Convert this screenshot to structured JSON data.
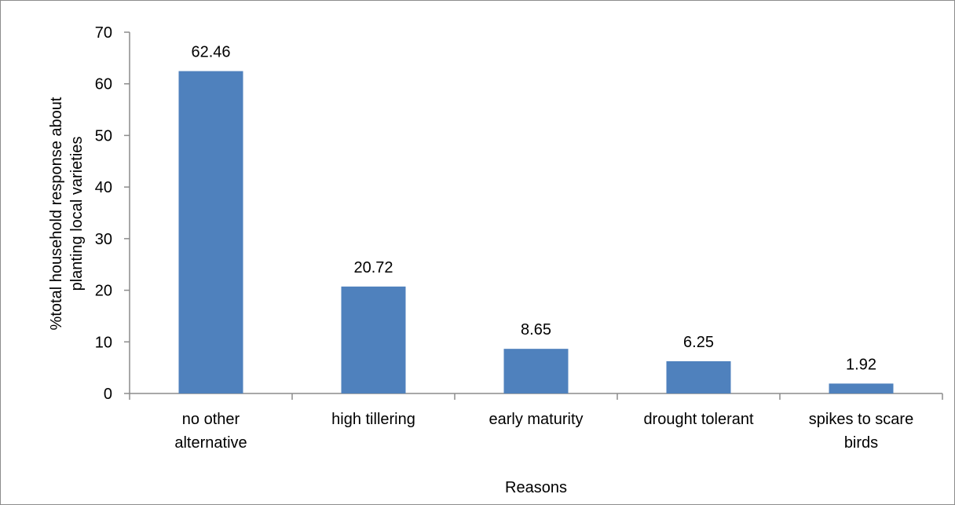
{
  "chart_data": {
    "type": "bar",
    "categories": [
      [
        "no other",
        "alternative"
      ],
      [
        "high tillering"
      ],
      [
        "early maturity"
      ],
      [
        "drought tolerant"
      ],
      [
        "spikes to scare",
        "birds"
      ]
    ],
    "values": [
      62.46,
      20.72,
      8.65,
      6.25,
      1.92
    ],
    "data_labels": [
      "62.46",
      "20.72",
      "8.65",
      "6.25",
      "1.92"
    ],
    "xlabel": "Reasons",
    "ylabel": [
      "%total household response about",
      "planting local varieties"
    ],
    "ylim": [
      0,
      70
    ],
    "yticks": [
      0,
      10,
      20,
      30,
      40,
      50,
      60,
      70
    ],
    "grid": false,
    "legend": "none",
    "bar_color": "#4f81bd"
  }
}
